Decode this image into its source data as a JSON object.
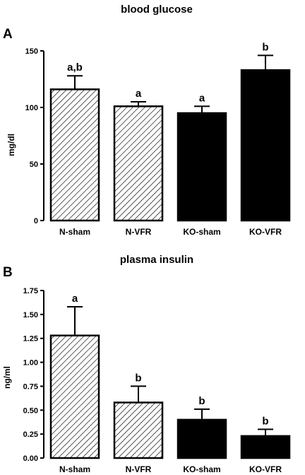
{
  "chart_data": [
    {
      "type": "bar",
      "panel": "A",
      "title": "blood glucose",
      "ylabel": "mg/dl",
      "xlabel": "",
      "ylim": [
        0,
        150
      ],
      "yticks": [
        0,
        50,
        100,
        150
      ],
      "categories": [
        "N-sham",
        "N-VFR",
        "KO-sham",
        "KO-VFR"
      ],
      "values": [
        116,
        101,
        95,
        133
      ],
      "errors": [
        12,
        4,
        6,
        13
      ],
      "significance": [
        "a,b",
        "a",
        "a",
        "b"
      ],
      "fill": [
        "hatched",
        "hatched",
        "solid",
        "solid"
      ],
      "grid": false
    },
    {
      "type": "bar",
      "panel": "B",
      "title": "plasma insulin",
      "ylabel": "ng/ml",
      "xlabel": "",
      "ylim": [
        0,
        1.75
      ],
      "yticks": [
        "0.00",
        "0.25",
        "0.50",
        "0.75",
        "1.00",
        "1.25",
        "1.50",
        "1.75"
      ],
      "categories": [
        "N-sham",
        "N-VFR",
        "KO-sham",
        "KO-VFR"
      ],
      "values": [
        1.28,
        0.58,
        0.4,
        0.23
      ],
      "errors": [
        0.3,
        0.17,
        0.11,
        0.07
      ],
      "significance": [
        "a",
        "b",
        "b",
        "b"
      ],
      "fill": [
        "hatched",
        "hatched",
        "solid",
        "solid"
      ],
      "grid": false
    }
  ]
}
